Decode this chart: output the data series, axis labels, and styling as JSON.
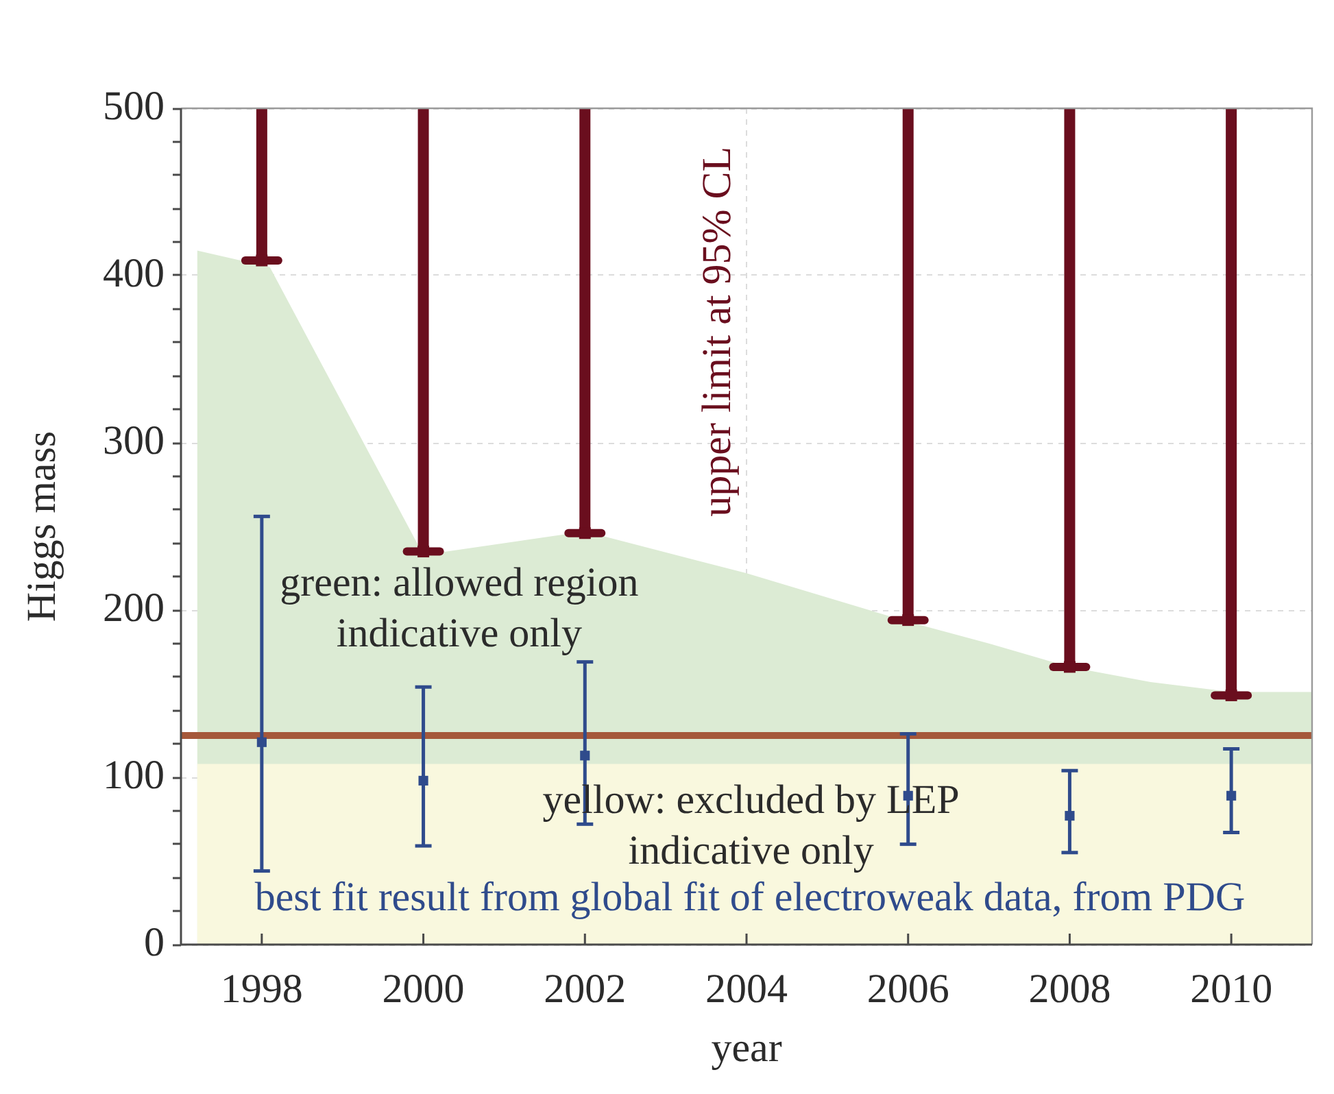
{
  "chart_data": {
    "type": "scatter",
    "xlabel": "year",
    "ylabel": "Higgs mass",
    "xlim": [
      1997,
      2011
    ],
    "xticks": [
      1998,
      2000,
      2002,
      2004,
      2006,
      2008,
      2010
    ],
    "ylim": [
      0,
      500
    ],
    "yticks": [
      0,
      {
        "value": 20,
        "label": null
      },
      {
        "value": 40,
        "label": null
      },
      {
        "value": 60,
        "label": null
      },
      {
        "value": 80,
        "label": null
      },
      100,
      {
        "value": 120,
        "label": null
      },
      {
        "value": 140,
        "label": null
      },
      {
        "value": 160,
        "label": null
      },
      {
        "value": 180,
        "label": null
      },
      200,
      {
        "value": 220,
        "label": null
      },
      {
        "value": 240,
        "label": null
      },
      {
        "value": 260,
        "label": null
      },
      {
        "value": 280,
        "label": null
      },
      300,
      {
        "value": 320,
        "label": null
      },
      {
        "value": 340,
        "label": null
      },
      {
        "value": 360,
        "label": null
      },
      {
        "value": 380,
        "label": null
      },
      400,
      {
        "value": 420,
        "label": null
      },
      {
        "value": 440,
        "label": null
      },
      {
        "value": 460,
        "label": null
      },
      {
        "value": 480,
        "label": null
      },
      500
    ],
    "grid": true,
    "legend": false,
    "series": [
      {
        "type": "area",
        "color": "#dcebd4",
        "x": [
          1997.2,
          1998.1,
          2000,
          2002,
          2004,
          2006,
          2007,
          2008,
          2009,
          2010,
          2011
        ],
        "values": [
          415,
          405,
          233,
          247,
          222,
          193,
          180,
          166,
          157,
          151,
          151
        ]
      },
      {
        "type": "area",
        "color": "#f9f8de",
        "x": [
          1997.2,
          2011
        ],
        "values": [
          108,
          108
        ]
      },
      {
        "color": "#6a0e1e",
        "marker": "square",
        "x": [
          1998,
          2000,
          2002,
          2006,
          2008,
          2010
        ],
        "values": [
          409,
          235,
          246,
          194,
          166,
          149
        ],
        "errors": [
          [
            409,
            500
          ],
          [
            235,
            500
          ],
          [
            246,
            500
          ],
          [
            194,
            500
          ],
          [
            166,
            500
          ],
          [
            149,
            500
          ]
        ]
      },
      {
        "color": "#2f4b8c",
        "marker": "square",
        "x": [
          1998,
          2000,
          2002,
          2006,
          2008,
          2010
        ],
        "values": [
          121,
          98,
          113,
          89,
          77,
          89
        ],
        "errors": [
          [
            44,
            256
          ],
          [
            59,
            154
          ],
          [
            72,
            169
          ],
          [
            60,
            126
          ],
          [
            55,
            104
          ],
          [
            67,
            117
          ]
        ]
      }
    ],
    "ref_lines": [
      {
        "axis": "y",
        "value": 125,
        "color": "#a5583a"
      }
    ],
    "annotations": [
      "green: allowed region indicative only",
      "yellow: excluded by LEP indicative only",
      "upper limit at 95% CL",
      "best fit result from global fit of electroweak data, from PDG"
    ]
  }
}
